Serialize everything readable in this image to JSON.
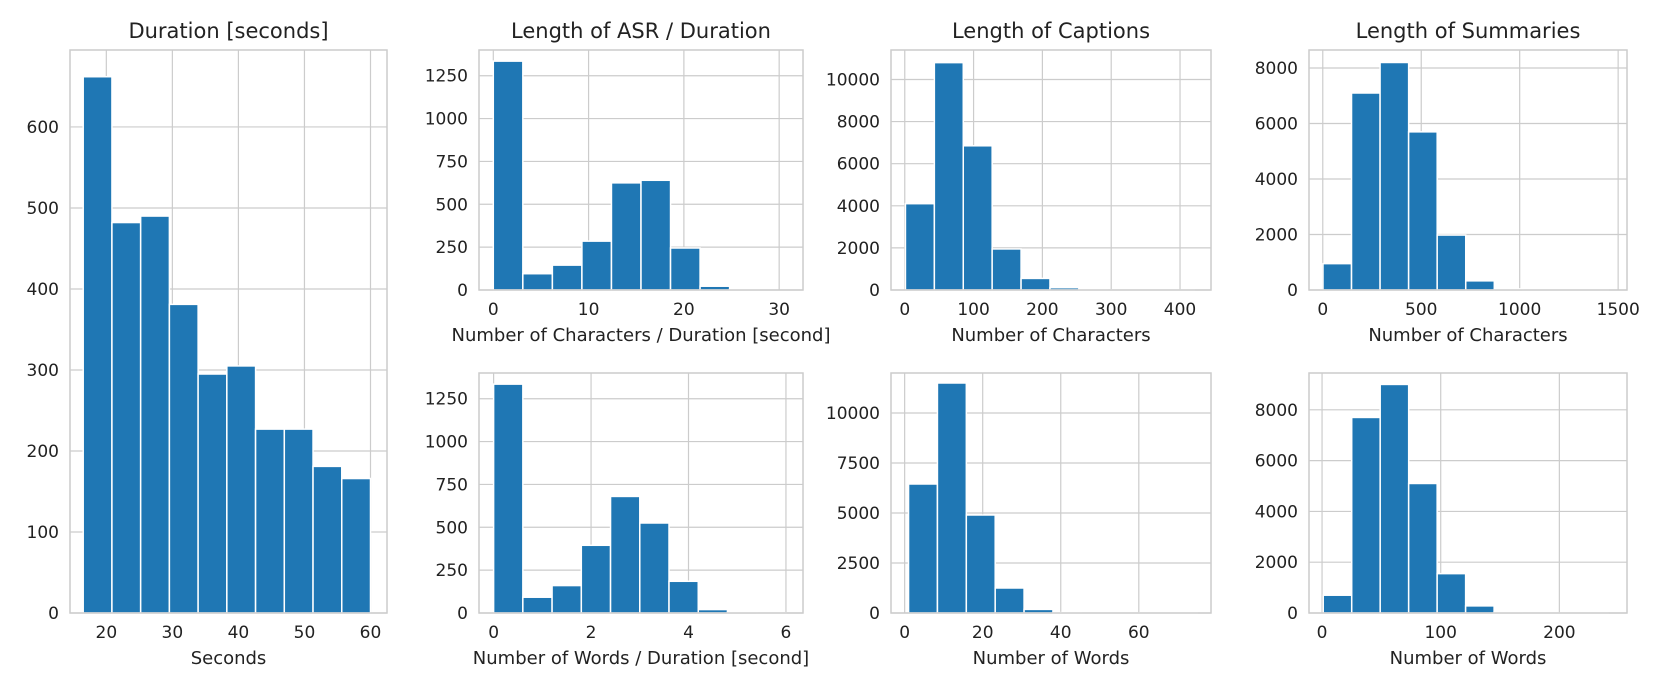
{
  "chart_data": [
    {
      "id": "duration",
      "type": "histogram",
      "title": "Duration [seconds]",
      "xlabel": "Seconds",
      "ylabel": "",
      "xlim": [
        14.5,
        62.5
      ],
      "ylim": [
        0,
        695
      ],
      "xticks": [
        20,
        30,
        40,
        50,
        60
      ],
      "xtick_labels": [
        "20",
        "30",
        "40",
        "50",
        "60"
      ],
      "yticks": [
        0,
        100,
        200,
        300,
        400,
        500,
        600
      ],
      "ytick_labels": [
        "0",
        "100",
        "200",
        "300",
        "400",
        "500",
        "600"
      ],
      "bins": [
        16.5,
        20.85,
        25.2,
        29.55,
        33.9,
        38.25,
        42.6,
        46.95,
        51.3,
        55.65,
        60
      ],
      "values": [
        662,
        482,
        490,
        381,
        295,
        305,
        227,
        227,
        181,
        166
      ]
    },
    {
      "id": "asr-chars",
      "type": "histogram",
      "title": "Length of ASR / Duration",
      "xlabel": "Number of Characters / Duration [second]",
      "ylabel": "",
      "xlim": [
        -1.5,
        32.5
      ],
      "ylim": [
        0,
        1400
      ],
      "xticks": [
        0,
        10,
        20,
        30
      ],
      "xtick_labels": [
        "0",
        "10",
        "20",
        "30"
      ],
      "yticks": [
        0,
        250,
        500,
        750,
        1000,
        1250
      ],
      "ytick_labels": [
        "0",
        "250",
        "500",
        "750",
        "1000",
        "1250"
      ],
      "bins": [
        0,
        3.1,
        6.2,
        9.3,
        12.4,
        15.5,
        18.6,
        21.7,
        24.8,
        27.9,
        31
      ],
      "values": [
        1335,
        95,
        145,
        285,
        625,
        640,
        245,
        22,
        4,
        0
      ]
    },
    {
      "id": "caption-chars",
      "type": "histogram",
      "title": "Length of Captions",
      "xlabel": "Number of Characters",
      "ylabel": "",
      "xlim": [
        -20,
        445
      ],
      "ylim": [
        0,
        11400
      ],
      "xticks": [
        0,
        100,
        200,
        300,
        400
      ],
      "xtick_labels": [
        "0",
        "100",
        "200",
        "300",
        "400"
      ],
      "yticks": [
        0,
        2000,
        4000,
        6000,
        8000,
        10000
      ],
      "ytick_labels": [
        "0",
        "2000",
        "4000",
        "6000",
        "8000",
        "10000"
      ],
      "bins": [
        1,
        43,
        85,
        127,
        169,
        211,
        253,
        295,
        337,
        379,
        421
      ],
      "values": [
        4100,
        10800,
        6850,
        1950,
        550,
        110,
        20,
        5,
        2,
        1
      ]
    },
    {
      "id": "summary-chars",
      "type": "histogram",
      "title": "Length of Summaries",
      "xlabel": "Number of Characters",
      "ylabel": "",
      "xlim": [
        -70,
        1545
      ],
      "ylim": [
        0,
        8650
      ],
      "xticks": [
        0,
        500,
        1000,
        1500
      ],
      "xtick_labels": [
        "0",
        "500",
        "1000",
        "1500"
      ],
      "yticks": [
        0,
        2000,
        4000,
        6000,
        8000
      ],
      "ytick_labels": [
        "0",
        "2000",
        "4000",
        "6000",
        "8000"
      ],
      "bins": [
        1,
        146,
        291,
        436,
        581,
        726,
        871,
        1016,
        1161,
        1306,
        1451
      ],
      "values": [
        950,
        7100,
        8200,
        5700,
        1980,
        330,
        40,
        5,
        2,
        1
      ]
    },
    {
      "id": "asr-words",
      "type": "histogram",
      "title": "",
      "xlabel": "Number of Words  / Duration [second]",
      "ylabel": "",
      "xlim": [
        -0.3,
        6.35
      ],
      "ylim": [
        0,
        1400
      ],
      "xticks": [
        0,
        2,
        4,
        6
      ],
      "xtick_labels": [
        "0",
        "2",
        "4",
        "6"
      ],
      "yticks": [
        0,
        250,
        500,
        750,
        1000,
        1250
      ],
      "ytick_labels": [
        "0",
        "250",
        "500",
        "750",
        "1000",
        "1250"
      ],
      "bins": [
        0,
        0.6,
        1.2,
        1.8,
        2.4,
        3.0,
        3.6,
        4.2,
        4.8,
        5.4,
        6.0
      ],
      "values": [
        1335,
        92,
        160,
        395,
        680,
        525,
        185,
        20,
        4,
        1
      ]
    },
    {
      "id": "caption-words",
      "type": "histogram",
      "title": "",
      "xlabel": "Number of Words",
      "ylabel": "",
      "xlim": [
        -3.5,
        78.5
      ],
      "ylim": [
        0,
        12000
      ],
      "xticks": [
        0,
        20,
        40,
        60
      ],
      "xtick_labels": [
        "0",
        "20",
        "40",
        "60"
      ],
      "yticks": [
        0,
        2500,
        5000,
        7500,
        10000
      ],
      "ytick_labels": [
        "0",
        "2500",
        "5000",
        "7500",
        "10000"
      ],
      "bins": [
        1,
        8.4,
        15.8,
        23.2,
        30.6,
        38,
        45.4,
        52.8,
        60.2,
        67.6,
        75
      ],
      "values": [
        6450,
        11500,
        4900,
        1250,
        180,
        20,
        5,
        2,
        1,
        1
      ]
    },
    {
      "id": "summary-words",
      "type": "histogram",
      "title": "",
      "xlabel": "Number of Words",
      "ylabel": "",
      "xlim": [
        -11,
        257
      ],
      "ylim": [
        0,
        9450
      ],
      "xticks": [
        0,
        100,
        200
      ],
      "xtick_labels": [
        "0",
        "100",
        "200"
      ],
      "yticks": [
        0,
        2000,
        4000,
        6000,
        8000
      ],
      "ytick_labels": [
        "0",
        "2000",
        "4000",
        "6000",
        "8000"
      ],
      "bins": [
        1,
        25,
        49,
        73,
        97,
        121,
        145,
        169,
        193,
        217,
        241
      ],
      "values": [
        700,
        7700,
        9000,
        5100,
        1550,
        280,
        30,
        5,
        2,
        1
      ]
    }
  ]
}
